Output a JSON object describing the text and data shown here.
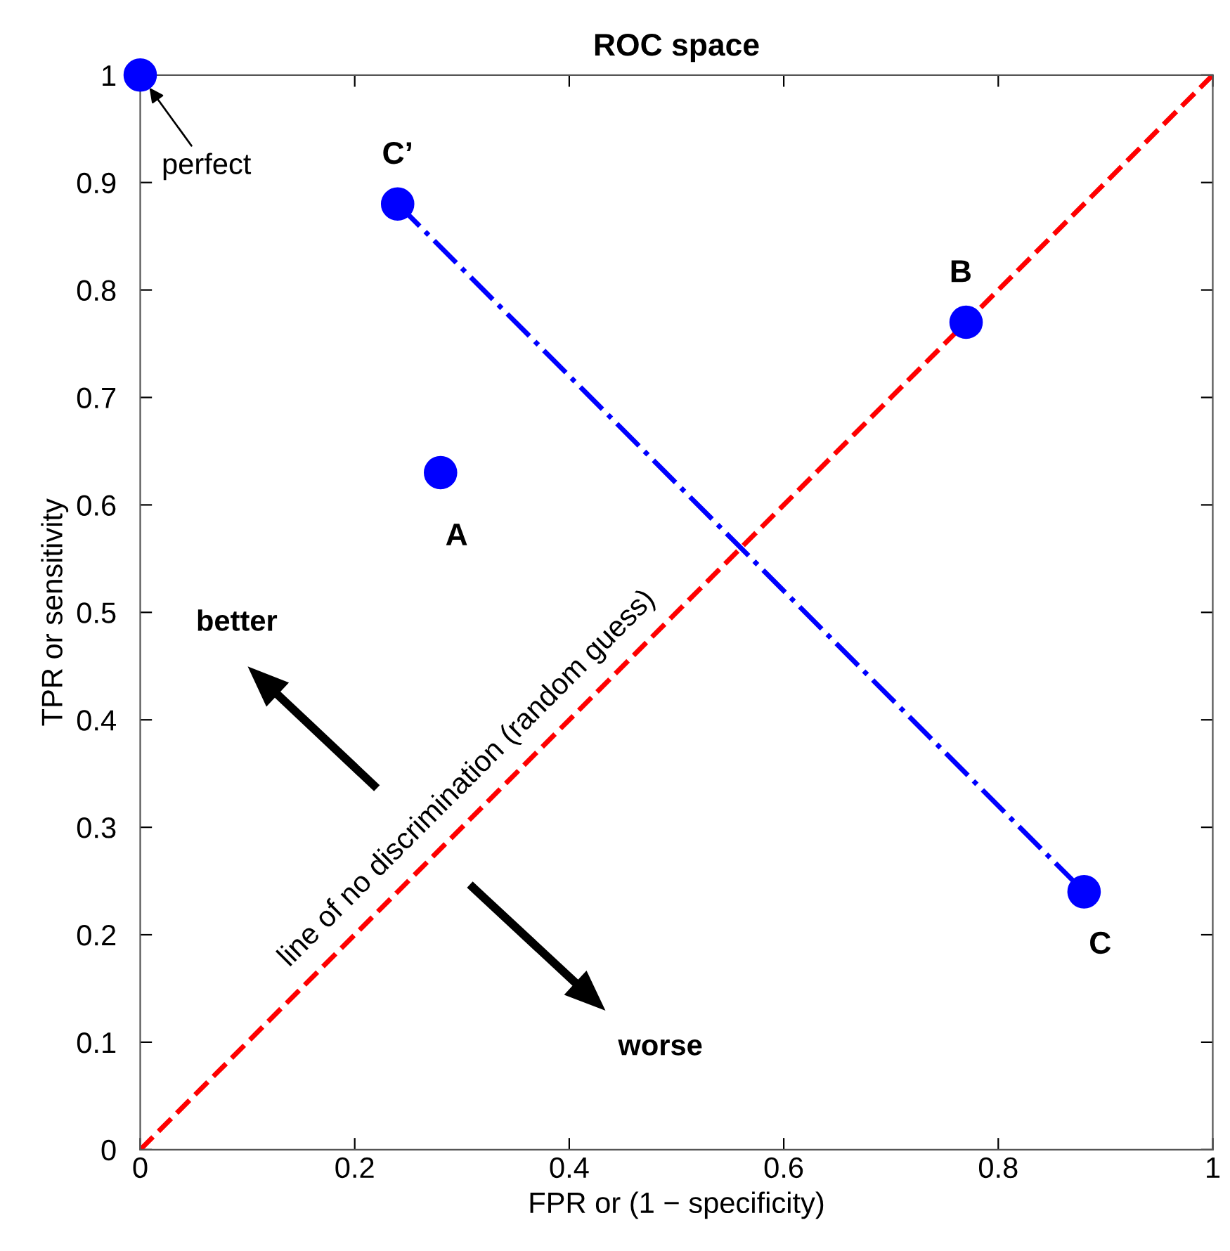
{
  "chart_data": {
    "type": "scatter",
    "title": "ROC space",
    "xlabel": "FPR or (1 − specificity)",
    "ylabel": "TPR or sensitivity",
    "xlim": [
      0,
      1
    ],
    "ylim": [
      0,
      1
    ],
    "xticks": [
      0,
      0.2,
      0.4,
      0.6,
      0.8,
      1
    ],
    "yticks": [
      0,
      0.1,
      0.2,
      0.3,
      0.4,
      0.5,
      0.6,
      0.7,
      0.8,
      0.9,
      1
    ],
    "grid": false,
    "legend": false,
    "series": [
      {
        "type": "line",
        "color": "#ff0000",
        "line_style": "dashed",
        "x": [
          0,
          1
        ],
        "values": [
          0,
          1
        ]
      },
      {
        "type": "line",
        "color": "#0000ff",
        "line_style": "dashdot",
        "x": [
          0.24,
          0.88
        ],
        "values": [
          0.88,
          0.24
        ]
      },
      {
        "marker": "circle",
        "color": "#0000ff",
        "x": [
          0,
          0.24,
          0.28,
          0.77,
          0.88
        ],
        "values": [
          1,
          0.88,
          0.63,
          0.77,
          0.24
        ]
      }
    ],
    "annotations": [
      {
        "text": "perfect",
        "x": 0,
        "y": 1
      },
      {
        "text": "C’",
        "x": 0.24,
        "y": 0.88
      },
      {
        "text": "A",
        "x": 0.28,
        "y": 0.63
      },
      {
        "text": "B",
        "x": 0.77,
        "y": 0.77
      },
      {
        "text": "C",
        "x": 0.88,
        "y": 0.24
      },
      "line of no discrimination (random guess)",
      "better",
      "worse"
    ]
  }
}
